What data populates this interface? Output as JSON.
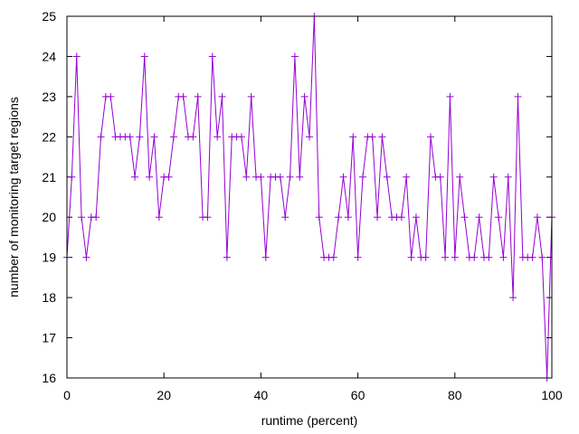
{
  "chart_data": {
    "type": "line",
    "title": "",
    "xlabel": "runtime (percent)",
    "ylabel": "number of monitoring target regions",
    "xlim": [
      0,
      100
    ],
    "ylim": [
      16,
      25
    ],
    "xticks": [
      0,
      20,
      40,
      60,
      80,
      100
    ],
    "yticks": [
      16,
      17,
      18,
      19,
      20,
      21,
      22,
      23,
      24,
      25
    ],
    "grid": false,
    "legend": "none",
    "series_color": "#9400d3",
    "series": [
      {
        "marker": "plus",
        "x": [
          0,
          1,
          2,
          3,
          4,
          5,
          6,
          7,
          8,
          9,
          10,
          11,
          12,
          13,
          14,
          15,
          16,
          17,
          18,
          19,
          20,
          21,
          22,
          23,
          24,
          25,
          26,
          27,
          28,
          29,
          30,
          31,
          32,
          33,
          34,
          35,
          36,
          37,
          38,
          39,
          40,
          41,
          42,
          43,
          44,
          45,
          46,
          47,
          48,
          49,
          50,
          51,
          52,
          53,
          54,
          55,
          56,
          57,
          58,
          59,
          60,
          61,
          62,
          63,
          64,
          65,
          66,
          67,
          68,
          69,
          70,
          71,
          72,
          73,
          74,
          75,
          76,
          77,
          78,
          79,
          80,
          81,
          82,
          83,
          84,
          85,
          86,
          87,
          88,
          89,
          90,
          91,
          92,
          93,
          94,
          95,
          96,
          97,
          98,
          99,
          100
        ],
        "y": [
          19,
          21,
          24,
          20,
          19,
          20,
          20,
          22,
          23,
          23,
          22,
          22,
          22,
          22,
          21,
          22,
          24,
          21,
          22,
          20,
          21,
          21,
          22,
          23,
          23,
          22,
          22,
          23,
          20,
          20,
          24,
          22,
          23,
          19,
          22,
          22,
          22,
          21,
          23,
          21,
          21,
          19,
          21,
          21,
          21,
          20,
          21,
          24,
          21,
          23,
          22,
          25,
          20,
          19,
          19,
          19,
          20,
          21,
          20,
          22,
          19,
          21,
          22,
          22,
          20,
          22,
          21,
          20,
          20,
          20,
          21,
          19,
          20,
          19,
          19,
          22,
          21,
          21,
          19,
          23,
          19,
          21,
          20,
          19,
          19,
          20,
          19,
          19,
          21,
          20,
          19,
          21,
          18,
          23,
          19,
          19,
          19,
          20,
          19,
          16,
          20
        ]
      }
    ]
  }
}
